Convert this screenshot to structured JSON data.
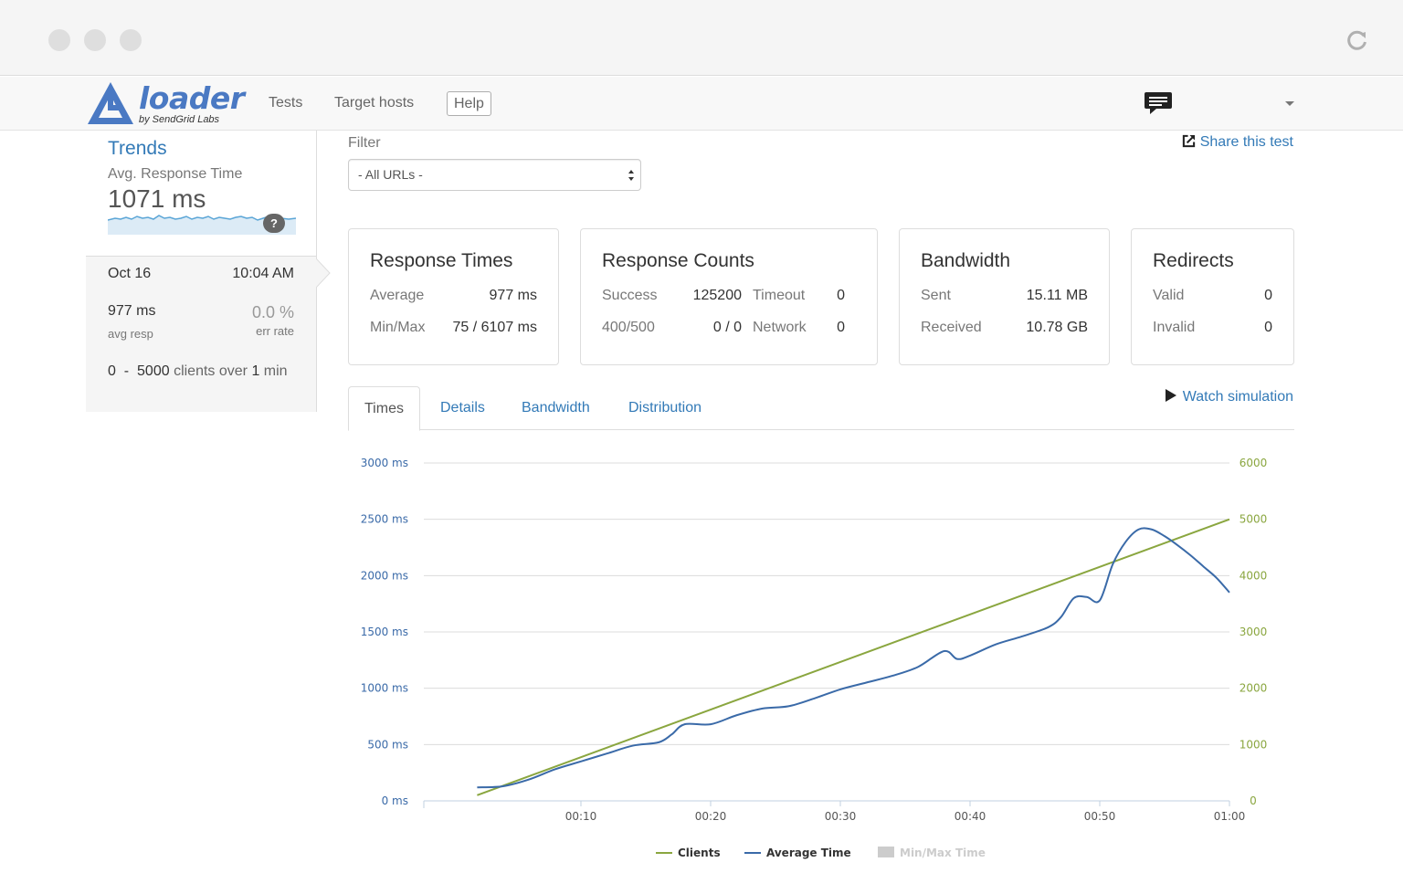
{
  "nav": {
    "brand": "loader",
    "brand_sub": "by SendGrid Labs",
    "links": [
      "Tests",
      "Target hosts"
    ],
    "help": "Help"
  },
  "sidebar": {
    "title": "Trends",
    "avg_label": "Avg. Response Time",
    "avg_value": "1071 ms",
    "help_badge": "?",
    "run": {
      "date": "Oct 16",
      "time": "10:04 AM",
      "resp": "977 ms",
      "resp_label": "avg resp",
      "err": "0.0 %",
      "err_label": "err rate",
      "clients_from": "0",
      "clients_dash": "-",
      "clients_to": "5000",
      "clients_mid": "clients over",
      "clients_dur": "1",
      "clients_unit": "min"
    }
  },
  "filter": {
    "label": "Filter",
    "selected": "- All URLs -"
  },
  "share_label": "Share this test",
  "cards": {
    "response_times": {
      "title": "Response Times",
      "average_label": "Average",
      "average_value": "977 ms",
      "minmax_label": "Min/Max",
      "minmax_value": "75 / 6107 ms"
    },
    "response_counts": {
      "title": "Response Counts",
      "success_label": "Success",
      "success_value": "125200",
      "timeout_label": "Timeout",
      "timeout_value": "0",
      "err_label": "400/500",
      "err_value": "0 / 0",
      "network_label": "Network",
      "network_value": "0"
    },
    "bandwidth": {
      "title": "Bandwidth",
      "sent_label": "Sent",
      "sent_value": "15.11 MB",
      "received_label": "Received",
      "received_value": "10.78 GB"
    },
    "redirects": {
      "title": "Redirects",
      "valid_label": "Valid",
      "valid_value": "0",
      "invalid_label": "Invalid",
      "invalid_value": "0"
    }
  },
  "tabs": [
    "Times",
    "Details",
    "Bandwidth",
    "Distribution"
  ],
  "watch_label": "Watch simulation",
  "colors": {
    "clients": "#8aa63f",
    "average": "#3a6aa8",
    "minmax": "#cccccc",
    "link": "#337ab7"
  },
  "chart_data": {
    "type": "line",
    "x_ticks": [
      "00:10",
      "00:20",
      "00:30",
      "00:40",
      "00:50",
      "01:00"
    ],
    "x_range_seconds": [
      0,
      60
    ],
    "y_left_ticks": [
      "0 ms",
      "500 ms",
      "1000 ms",
      "1500 ms",
      "2000 ms",
      "2500 ms",
      "3000 ms"
    ],
    "y_left_range": [
      0,
      3000
    ],
    "y_right_ticks": [
      "0",
      "1000",
      "2000",
      "3000",
      "4000",
      "5000",
      "6000"
    ],
    "y_right_range": [
      0,
      6000
    ],
    "grid": true,
    "legend_position": "bottom",
    "legend": [
      "Clients",
      "Average Time",
      "Min/Max Time"
    ],
    "series": [
      {
        "name": "Clients",
        "axis": "right",
        "x": [
          2,
          60
        ],
        "values": [
          100,
          5000
        ]
      },
      {
        "name": "Average Time",
        "axis": "left",
        "x": [
          2,
          4,
          6,
          8,
          10,
          12,
          14,
          16,
          17,
          18,
          20,
          22,
          24,
          26,
          28,
          30,
          32,
          34,
          36,
          38,
          39,
          40,
          42,
          44,
          46,
          47,
          48,
          49,
          50,
          51,
          52,
          53,
          54,
          55,
          56,
          57,
          58,
          59,
          60
        ],
        "values": [
          120,
          130,
          190,
          280,
          350,
          420,
          490,
          520,
          590,
          680,
          680,
          760,
          820,
          840,
          910,
          990,
          1050,
          1110,
          1190,
          1330,
          1260,
          1290,
          1390,
          1460,
          1540,
          1630,
          1800,
          1810,
          1780,
          2100,
          2300,
          2410,
          2410,
          2350,
          2270,
          2180,
          2080,
          1980,
          1850
        ]
      },
      {
        "name": "Min/Max Time",
        "axis": "left",
        "disabled": true,
        "values": []
      }
    ]
  }
}
